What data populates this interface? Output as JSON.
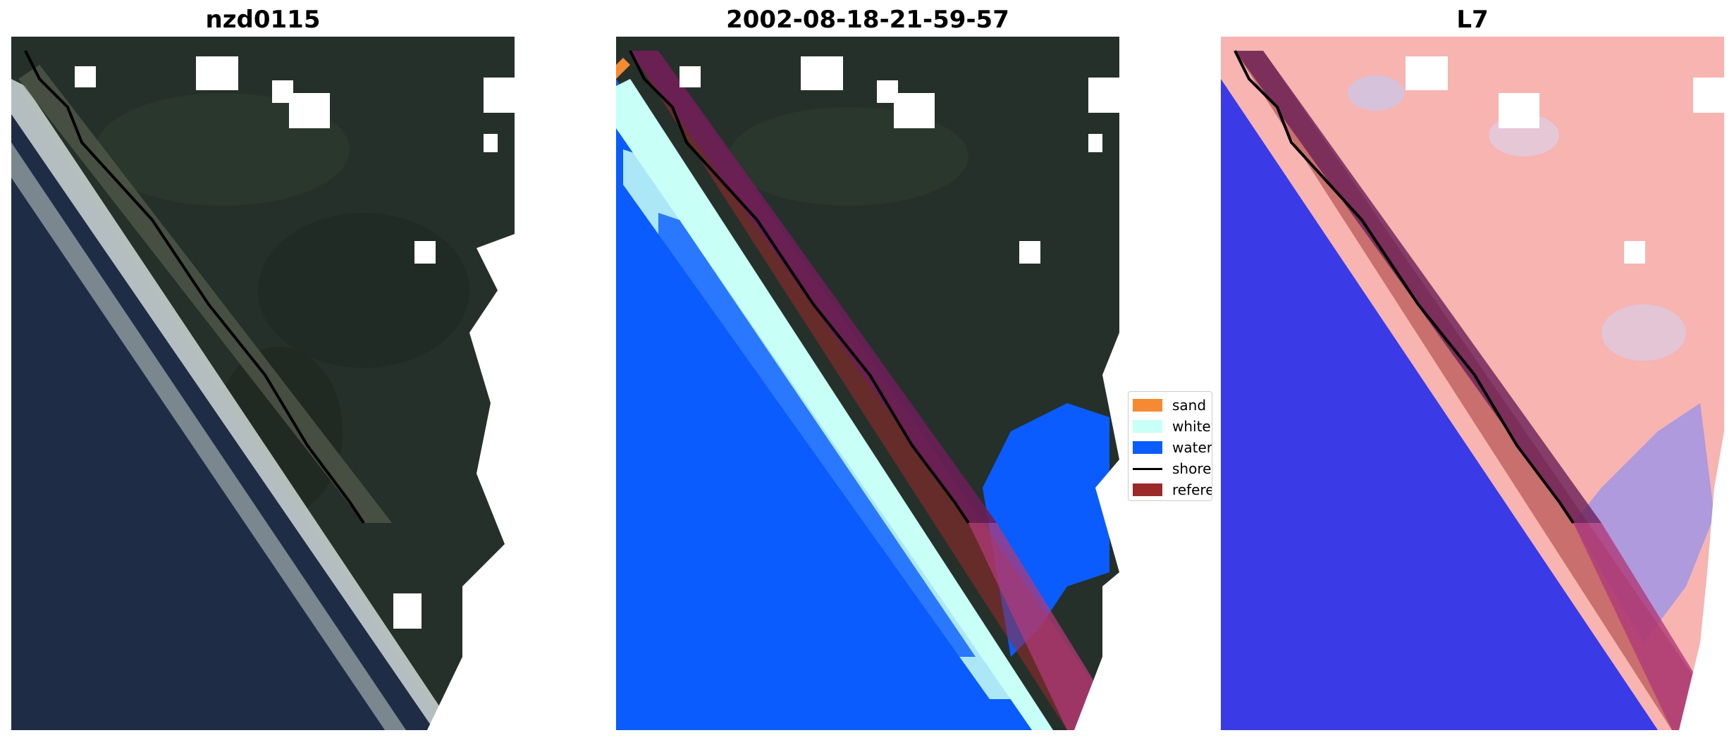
{
  "panels": [
    {
      "title": "nzd0115"
    },
    {
      "title": "2002-08-18-21-59-57"
    },
    {
      "title": "L7"
    }
  ],
  "legend": {
    "items": [
      {
        "label": "sand",
        "color": "#f58a33"
      },
      {
        "label": "whitewater",
        "color": "#c8fff6"
      },
      {
        "label": "water",
        "color": "#0a5cff"
      },
      {
        "label": "shoreline",
        "color": "#000000"
      },
      {
        "label": "reference shoreline",
        "color": "#9b2a2a"
      }
    ]
  },
  "colors": {
    "land": "#26302a",
    "ocean": "#1f2c45",
    "cloud_mask": "#ffffff",
    "index_land": "#f7b4b0",
    "index_water": "#3a3ae6",
    "buffer": "#b03a78"
  }
}
